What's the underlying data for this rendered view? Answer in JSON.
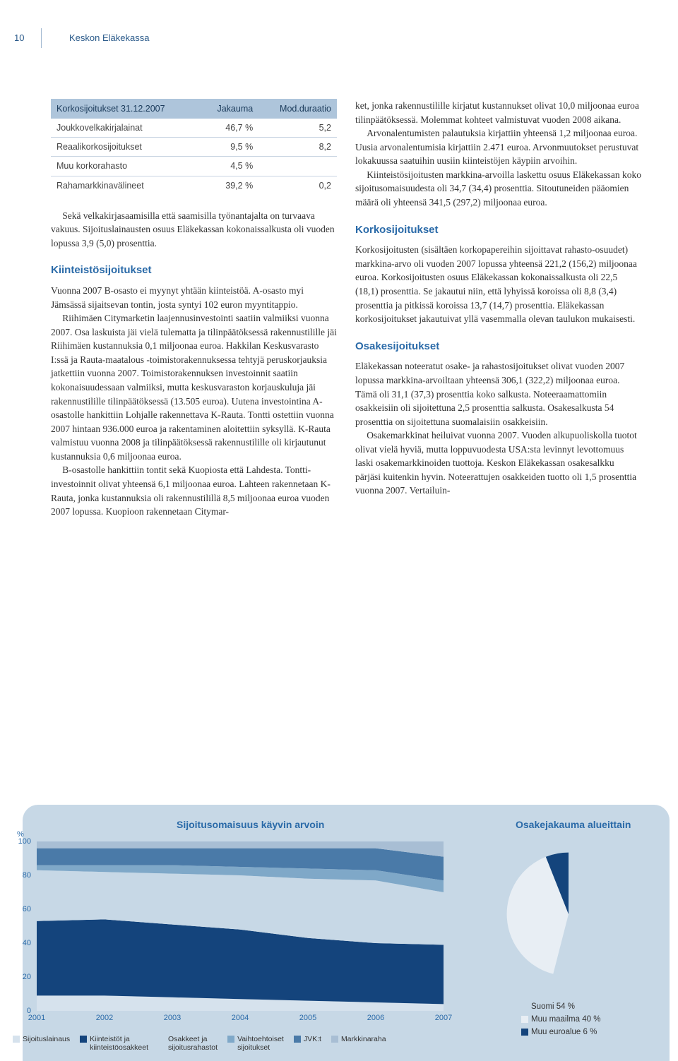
{
  "page_number": "10",
  "header_title": "Keskon Eläkekassa",
  "table": {
    "header": [
      "Korkosijoitukset 31.12.2007",
      "Jakauma",
      "Mod.duraatio"
    ],
    "rows": [
      [
        "Joukkovelkakirjalainat",
        "46,7 %",
        "5,2"
      ],
      [
        "Reaalikorkosijoitukset",
        "9,5 %",
        "8,2"
      ],
      [
        "Muu korkorahasto",
        "4,5 %",
        ""
      ],
      [
        "Rahamarkkinavälineet",
        "39,2 %",
        "0,2"
      ]
    ]
  },
  "left": {
    "p1": "Sekä velkakirjasaamisilla että saamisilla työnantajalta on turvaava vakuus. Sijoituslainausten osuus Eläkekassan kokonaissalkusta oli vuoden lopussa 3,9 (5,0) prosenttia.",
    "h1": "Kiinteistösijoitukset",
    "p2": "Vuonna 2007 B-osasto ei myynyt yhtään kiinteistöä. A-osasto myi Jämsässä sijaitsevan tontin, josta syntyi 102 euron myyntitappio.",
    "p3": "Riihimäen Citymarketin laajennusinvestointi saatiin valmiiksi vuonna 2007. Osa laskuista jäi vielä tulematta ja tilinpäätöksessä rakennustilille jäi Riihimäen kustannuksia 0,1 miljoonaa euroa. Hakkilan Keskusvarasto I:ssä ja Rauta-maatalous -toimistorakennuksessa tehtyjä peruskorjauksia jatkettiin vuonna 2007. Toimistorakennuksen investoinnit saatiin kokonaisuudessaan valmiiksi, mutta keskusvaraston korjauskuluja jäi rakennustilille tilinpäätöksessä (13.505 euroa). Uutena investointina A-osastolle hankittiin Lohjalle rakennettava K-Rauta. Tontti ostettiin vuonna 2007 hintaan 936.000 euroa ja rakentaminen aloitettiin syksyllä. K-Rauta valmistuu vuonna 2008 ja tilinpäätöksessä rakennustilille oli kirjautunut kustannuksia 0,6 miljoonaa euroa.",
    "p4": "B-osastolle hankittiin tontit sekä Kuopiosta että Lahdesta. Tontti-investoinnit olivat yhteensä 6,1 miljoonaa euroa. Lahteen rakennetaan K-Rauta, jonka kustannuksia oli rakennustilillä 8,5 miljoonaa euroa vuoden 2007 lopussa. Kuopioon rakennetaan Citymar-"
  },
  "right": {
    "p1": "ket, jonka rakennustilille kirjatut kustannukset olivat 10,0 miljoonaa euroa tilinpäätöksessä. Molemmat kohteet valmistuvat vuoden 2008 aikana.",
    "p2": "Arvonalentumisten palautuksia kirjattiin yhteensä 1,2 miljoonaa euroa. Uusia arvonalentumisia kirjattiin 2.471 euroa. Arvonmuutokset perustuvat lokakuussa saatuihin uusiin kiinteistöjen käypiin arvoihin.",
    "p3": "Kiinteistösijoitusten markkina-arvoilla laskettu osuus Eläkekassan koko sijoitusomaisuudesta oli 34,7 (34,4) prosenttia. Sitoutuneiden pääomien määrä oli yhteensä 341,5 (297,2) miljoonaa euroa.",
    "h1": "Korkosijoitukset",
    "p4": "Korkosijoitusten (sisältäen korkopapereihin sijoittavat rahasto-osuudet) markkina-arvo oli vuoden 2007 lopussa yhteensä 221,2 (156,2) miljoonaa euroa. Korkosijoitusten osuus Eläkekassan kokonaissalkusta oli 22,5 (18,1) prosenttia. Se jakautui niin, että lyhyissä koroissa oli 8,8 (3,4) prosenttia ja pitkissä koroissa 13,7 (14,7) prosenttia. Eläkekassan korkosijoitukset jakautuivat yllä vasemmalla olevan taulukon mukaisesti.",
    "h2": "Osakesijoitukset",
    "p5": "Eläkekassan noteeratut osake- ja rahastosijoitukset olivat vuoden 2007 lopussa markkina-arvoiltaan yhteensä 306,1 (322,2) miljoonaa euroa. Tämä oli 31,1 (37,3) prosenttia koko salkusta. Noteeraamattomiin osakkeisiin oli sijoitettuna 2,5 prosenttia salkusta. Osakesalkusta 54 prosenttia on sijoitettuna suomalaisiin osakkeisiin.",
    "p6": "Osakemarkkinat heiluivat vuonna 2007. Vuoden alkupuoliskolla tuotot olivat vielä hyviä, mutta loppuvuodesta USA:sta levinnyt levottomuus laski osakemarkkinoiden tuottoja. Keskon Eläkekassan osakesalkku pärjäsi kuitenkin hyvin. Noteerattujen osakkeiden tuotto oli 1,5 prosenttia vuonna 2007. Vertailuin-"
  },
  "area_chart": {
    "title": "Sijoitusomaisuus käyvin arvoin",
    "ylabel": "%",
    "ylim": [
      0,
      100
    ],
    "yticks": [
      0,
      20,
      40,
      60,
      80,
      100
    ],
    "years": [
      "2001",
      "2002",
      "2003",
      "2004",
      "2005",
      "2006",
      "2007"
    ],
    "series": [
      {
        "name": "Sijoituslainaus",
        "color": "#d6e2ed",
        "values": [
          9,
          9,
          8,
          7,
          6,
          5,
          4
        ]
      },
      {
        "name": "Kiinteistöt ja\nkiinteistöosakkeet",
        "color": "#14447c",
        "values": [
          44,
          45,
          43,
          41,
          37,
          35,
          35
        ]
      },
      {
        "name": "Osakkeet ja\nsijoitusrahastot",
        "color": "#c7d8e6",
        "values": [
          30,
          28,
          30,
          32,
          35,
          37,
          31
        ]
      },
      {
        "name": "Vaihtoehtoiset\nsijoitukset",
        "color": "#7fa8c8",
        "values": [
          3,
          4,
          5,
          5,
          6,
          6,
          7
        ]
      },
      {
        "name": "JVK:t",
        "color": "#4a7aa8",
        "values": [
          10,
          10,
          10,
          11,
          12,
          13,
          14
        ]
      },
      {
        "name": "Markkinaraha",
        "color": "#a8bed4",
        "values": [
          4,
          4,
          4,
          4,
          4,
          4,
          9
        ]
      }
    ],
    "background_color": "#ffffff",
    "grid_color": "#eef3f8"
  },
  "pie_chart": {
    "title": "Osakejakauma alueittain",
    "slices": [
      {
        "name": "Suomi 54 %",
        "value": 54,
        "color": "#c7d8e6"
      },
      {
        "name": "Muu maailma 40 %",
        "value": 40,
        "color": "#e8eef4"
      },
      {
        "name": "Muu euroalue 6 %",
        "value": 6,
        "color": "#14447c"
      }
    ]
  }
}
